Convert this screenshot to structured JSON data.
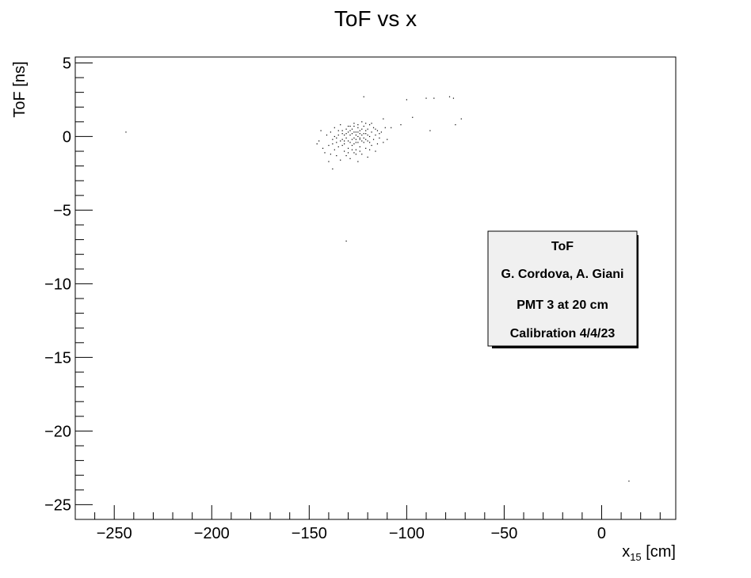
{
  "chart_data": {
    "type": "scatter",
    "title": "ToF vs x",
    "xlabel": {
      "main": "x",
      "subscript": "15",
      "unit": " [cm]"
    },
    "ylabel": "ToF [ns]",
    "xlim": [
      -270,
      38
    ],
    "ylim": [
      -26,
      5.4
    ],
    "x_ticks": [
      -250,
      -200,
      -150,
      -100,
      -50,
      0
    ],
    "x_tick_labels": [
      "−250",
      "−200",
      "−150",
      "−100",
      "−50",
      "0"
    ],
    "y_ticks": [
      5,
      0,
      -5,
      -10,
      -15,
      -20,
      -25
    ],
    "y_tick_labels": [
      "5",
      "0",
      "−5",
      "−10",
      "−15",
      "−20",
      "−25"
    ],
    "grid": false,
    "legend": "none",
    "points": [
      [
        -244,
        0.3
      ],
      [
        -131,
        -7.1
      ],
      [
        14,
        -23.4
      ],
      [
        -122,
        2.7
      ],
      [
        -100,
        2.5
      ],
      [
        -90,
        2.6
      ],
      [
        -86,
        2.6
      ],
      [
        -78,
        2.7
      ],
      [
        -76,
        2.6
      ],
      [
        -97,
        1.3
      ],
      [
        -72,
        1.2
      ],
      [
        -75,
        0.8
      ],
      [
        -103,
        0.8
      ],
      [
        -88,
        0.4
      ],
      [
        -112,
        1.2
      ],
      [
        -108,
        0.6
      ],
      [
        -144,
        0.4
      ],
      [
        -145,
        -0.3
      ],
      [
        -146,
        -0.5
      ],
      [
        -143,
        -0.8
      ],
      [
        -142,
        -1.1
      ],
      [
        -141,
        0.1
      ],
      [
        -140,
        -0.6
      ],
      [
        -140,
        -1.7
      ],
      [
        -139,
        0.3
      ],
      [
        -138,
        -2.2
      ],
      [
        -138,
        -0.2
      ],
      [
        -137,
        -0.9
      ],
      [
        -137,
        0.6
      ],
      [
        -136,
        -1.3
      ],
      [
        -136,
        -0.4
      ],
      [
        -135,
        0.1
      ],
      [
        -135,
        -0.7
      ],
      [
        -134,
        0.8
      ],
      [
        -134,
        -1.6
      ],
      [
        -133,
        -0.2
      ],
      [
        -133,
        0.4
      ],
      [
        -132,
        -1.0
      ],
      [
        -132,
        -0.5
      ],
      [
        -131,
        0.2
      ],
      [
        -131,
        -1.3
      ],
      [
        -130,
        0.7
      ],
      [
        -130,
        -0.3
      ],
      [
        -130,
        -0.8
      ],
      [
        -129,
        0.1
      ],
      [
        -129,
        -1.5
      ],
      [
        -128,
        0.5
      ],
      [
        -128,
        -0.6
      ],
      [
        -127,
        -0.1
      ],
      [
        -127,
        0.9
      ],
      [
        -127,
        -1.1
      ],
      [
        -126,
        0.3
      ],
      [
        -126,
        -0.4
      ],
      [
        -126,
        -0.9
      ],
      [
        -125,
        0.6
      ],
      [
        -125,
        0.0
      ],
      [
        -125,
        -1.7
      ],
      [
        -124,
        -0.2
      ],
      [
        -124,
        0.4
      ],
      [
        -124,
        -0.7
      ],
      [
        -123,
        1.0
      ],
      [
        -123,
        0.1
      ],
      [
        -123,
        -1.2
      ],
      [
        -122,
        -0.4
      ],
      [
        -122,
        0.7
      ],
      [
        -122,
        -0.1
      ],
      [
        -121,
        0.2
      ],
      [
        -121,
        -0.8
      ],
      [
        -121,
        0.9
      ],
      [
        -120,
        -0.3
      ],
      [
        -120,
        0.5
      ],
      [
        -120,
        -1.4
      ],
      [
        -119,
        0.0
      ],
      [
        -119,
        0.8
      ],
      [
        -118,
        -0.6
      ],
      [
        -118,
        0.3
      ],
      [
        -117,
        -0.2
      ],
      [
        -117,
        0.6
      ],
      [
        -116,
        -1.0
      ],
      [
        -116,
        0.1
      ],
      [
        -115,
        0.4
      ],
      [
        -115,
        -0.5
      ],
      [
        -114,
        -0.1
      ],
      [
        -113,
        0.3
      ],
      [
        -112,
        -0.4
      ],
      [
        -111,
        0.6
      ],
      [
        -110,
        -0.2
      ],
      [
        -128,
        -0.2
      ],
      [
        -126,
        0.1
      ],
      [
        -124,
        0.2
      ],
      [
        -129,
        0.4
      ],
      [
        -127,
        0.3
      ],
      [
        -125,
        0.3
      ],
      [
        -123,
        0.5
      ],
      [
        -131,
        -0.1
      ],
      [
        -133,
        -0.6
      ],
      [
        -132,
        0.1
      ],
      [
        -130,
        0.3
      ],
      [
        -128,
        0.2
      ],
      [
        -126,
        -0.2
      ],
      [
        -124,
        -0.1
      ],
      [
        -122,
        0.2
      ],
      [
        -120,
        0.1
      ],
      [
        -136,
        -0.1
      ],
      [
        -134,
        -0.3
      ],
      [
        -132,
        -0.3
      ],
      [
        -129,
        -0.4
      ],
      [
        -127,
        -0.5
      ],
      [
        -125,
        -0.4
      ],
      [
        -123,
        -0.3
      ],
      [
        -121,
        -0.2
      ],
      [
        -119,
        -0.4
      ],
      [
        -135,
        0.4
      ],
      [
        -133,
        0.2
      ],
      [
        -131,
        0.5
      ],
      [
        -129,
        0.7
      ],
      [
        -127,
        0.7
      ],
      [
        -125,
        0.8
      ],
      [
        -138,
        -0.5
      ],
      [
        -139,
        -1.2
      ],
      [
        -137,
        0.0
      ],
      [
        -118,
        0.9
      ],
      [
        -116,
        0.5
      ],
      [
        -114,
        0.2
      ],
      [
        -121,
        0.4
      ],
      [
        -128,
        -0.9
      ],
      [
        -126,
        -1.2
      ],
      [
        -130,
        -1.1
      ],
      [
        -124,
        -1.0
      ],
      [
        -119,
        -0.9
      ]
    ],
    "annotation_box": {
      "lines": [
        "ToF",
        "G. Cordova, A. Giani",
        "PMT 3 at 20 cm",
        "Calibration 4/4/23"
      ]
    }
  }
}
